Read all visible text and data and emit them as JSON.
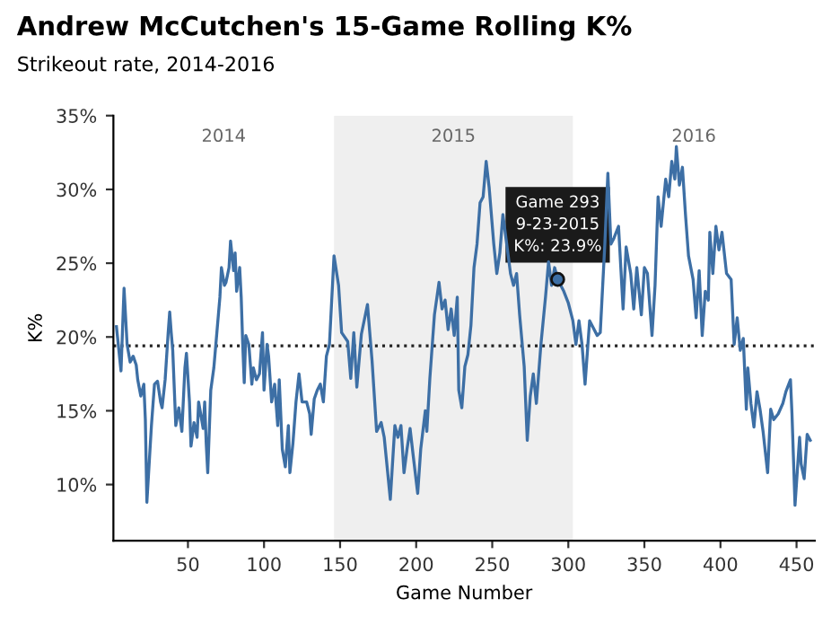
{
  "chart_data": {
    "type": "line",
    "title": "Andrew McCutchen's 15-Game Rolling K%",
    "subtitle": "Strikeout rate, 2014-2016",
    "xlabel": "Game Number",
    "ylabel": "K%",
    "series": [
      {
        "color": "#3d6fa5",
        "x": [
          3,
          6,
          8,
          10,
          12,
          14,
          16,
          17,
          19,
          21,
          22,
          23,
          26,
          28,
          30,
          32,
          33,
          35,
          37,
          38,
          39,
          40,
          42,
          44,
          46,
          48,
          49,
          51,
          52,
          54,
          56,
          57,
          60,
          61,
          62,
          63,
          65,
          67,
          69,
          71,
          72,
          74,
          75,
          77,
          78,
          80,
          81,
          82,
          84,
          85,
          86,
          87,
          88,
          90,
          92,
          93,
          95,
          97,
          99,
          100,
          102,
          103,
          105,
          107,
          109,
          110,
          112,
          114,
          116,
          117,
          119,
          121,
          123,
          125,
          128,
          130,
          131,
          133,
          135,
          137,
          139,
          141,
          143,
          146,
          149,
          151,
          155,
          157,
          159,
          161,
          164,
          168,
          171,
          174,
          177,
          179,
          183,
          186,
          188,
          190,
          192,
          194,
          196,
          198,
          201,
          203,
          206,
          207,
          209,
          212,
          215,
          217,
          219,
          221,
          223,
          225,
          227,
          228,
          230,
          232,
          234,
          236,
          238,
          240,
          242,
          244,
          246,
          248,
          251,
          253,
          255,
          257,
          260,
          262,
          264,
          266,
          268,
          271,
          273,
          275,
          277,
          279,
          282,
          285,
          287,
          289,
          291,
          293,
          297,
          300,
          303,
          305,
          307,
          309,
          311,
          314,
          316,
          319,
          321,
          324,
          326,
          328,
          330,
          333,
          336,
          338,
          341,
          343,
          345,
          348,
          350,
          352,
          355,
          357,
          359,
          361,
          364,
          366,
          368,
          370,
          371,
          373,
          375,
          377,
          379,
          382,
          384,
          386,
          388,
          390,
          392,
          393,
          395,
          397,
          399,
          401,
          404,
          407,
          409,
          411,
          413,
          415,
          417,
          418,
          420,
          422,
          424,
          426,
          428,
          431,
          433,
          435,
          438,
          441,
          443,
          446,
          447,
          449,
          452,
          453,
          455,
          457,
          459
        ],
        "values": [
          20.7,
          17.7,
          23.3,
          19.5,
          18.3,
          18.7,
          18.1,
          17.1,
          16.0,
          16.8,
          14.4,
          8.8,
          14.0,
          16.8,
          17.0,
          15.6,
          15.2,
          17.1,
          20.3,
          21.7,
          20.3,
          19.1,
          14.0,
          15.2,
          13.6,
          17.9,
          18.9,
          15.6,
          12.6,
          14.2,
          13.2,
          15.6,
          13.8,
          15.6,
          12.8,
          10.8,
          16.4,
          17.9,
          20.3,
          22.7,
          24.7,
          23.5,
          23.7,
          24.7,
          26.5,
          24.5,
          25.7,
          23.1,
          24.7,
          22.7,
          19.5,
          16.9,
          20.1,
          19.5,
          16.8,
          17.9,
          17.1,
          17.5,
          20.3,
          16.4,
          19.5,
          18.7,
          15.6,
          16.8,
          14.0,
          17.1,
          12.4,
          11.2,
          14.0,
          10.8,
          12.8,
          15.6,
          17.5,
          15.6,
          15.6,
          14.8,
          13.4,
          15.8,
          16.4,
          16.8,
          15.6,
          18.7,
          19.5,
          25.5,
          23.5,
          20.3,
          19.7,
          17.2,
          20.3,
          16.6,
          20.2,
          22.2,
          18.4,
          13.6,
          14.2,
          13.2,
          9.0,
          14.0,
          13.2,
          14.0,
          10.8,
          12.4,
          13.8,
          12.0,
          9.4,
          12.4,
          15.0,
          13.6,
          17.2,
          21.5,
          23.7,
          21.9,
          22.5,
          20.5,
          21.9,
          20.1,
          22.7,
          16.4,
          15.2,
          18.0,
          18.8,
          20.8,
          24.7,
          26.3,
          29.1,
          29.5,
          31.9,
          30.1,
          26.3,
          24.3,
          25.7,
          28.3,
          25.9,
          24.3,
          23.5,
          24.3,
          21.5,
          18.0,
          13.0,
          16.0,
          17.5,
          15.5,
          19.5,
          22.7,
          25.1,
          23.5,
          24.7,
          23.9,
          23.1,
          22.3,
          21.1,
          19.5,
          21.1,
          19.5,
          16.8,
          21.1,
          20.7,
          20.1,
          20.3,
          26.3,
          31.1,
          26.3,
          26.7,
          27.5,
          21.9,
          26.1,
          24.3,
          21.9,
          24.7,
          21.5,
          24.7,
          24.3,
          20.1,
          23.5,
          29.5,
          27.5,
          30.7,
          29.5,
          31.9,
          30.7,
          32.9,
          30.3,
          31.5,
          28.3,
          25.5,
          23.9,
          21.3,
          24.5,
          20.1,
          23.1,
          22.5,
          27.1,
          24.3,
          27.5,
          25.9,
          27.1,
          24.3,
          23.9,
          19.5,
          21.3,
          19.1,
          19.9,
          15.1,
          17.9,
          15.5,
          13.9,
          16.3,
          15.1,
          13.6,
          10.8,
          15.1,
          14.4,
          14.8,
          15.5,
          16.3,
          17.1,
          14.8,
          8.6,
          13.2,
          11.4,
          10.4,
          13.4,
          13.0
        ]
      }
    ],
    "xlim": [
      1,
      462
    ],
    "ylim": [
      6.2,
      35
    ],
    "xticks": [
      50,
      100,
      150,
      200,
      250,
      300,
      350,
      400,
      450
    ],
    "yticks": [
      {
        "value": 10,
        "label": "10%"
      },
      {
        "value": 15,
        "label": "15%"
      },
      {
        "value": 20,
        "label": "20%"
      },
      {
        "value": 25,
        "label": "25%"
      },
      {
        "value": 30,
        "label": "30%"
      },
      {
        "value": 35,
        "label": "35%"
      }
    ],
    "ref_lines": [
      {
        "axis": "y",
        "value": 19.4,
        "color": "#222222",
        "line_style": "dotted"
      }
    ],
    "bands": [
      {
        "axis": "x",
        "from": 146,
        "to": 303,
        "label": "2015",
        "color": "#efefef"
      }
    ],
    "annotations": [
      "2014",
      "2016",
      {
        "text": "Game 293\n9-23-2015\nK%: 23.9%",
        "x": 293,
        "y": 23.9
      }
    ],
    "grid": false,
    "legend": false,
    "marker": "none",
    "line_style": "solid"
  }
}
